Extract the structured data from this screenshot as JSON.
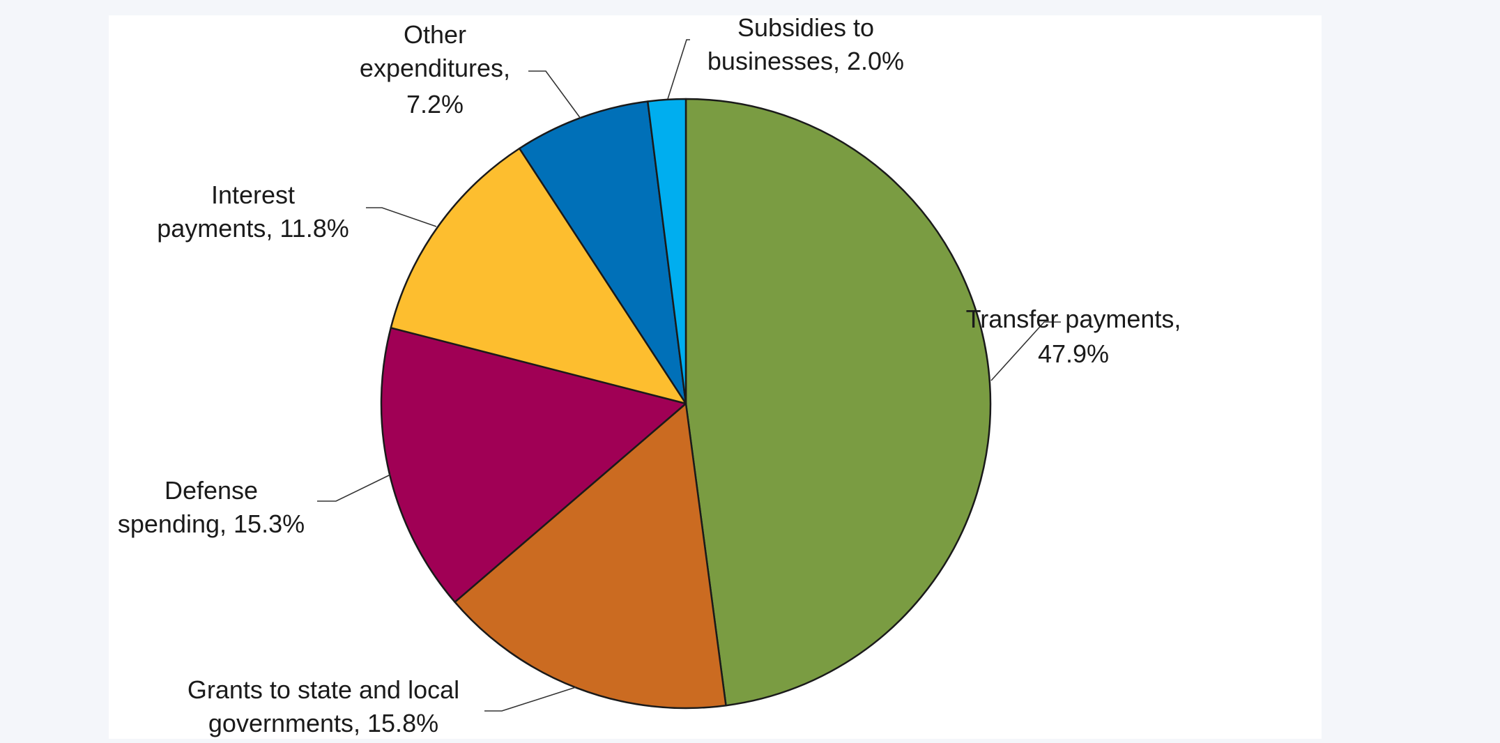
{
  "chart_data": {
    "type": "pie",
    "start_angle_deg": 0,
    "direction": "clockwise",
    "slices": [
      {
        "label": "Transfer payments",
        "value": 47.9,
        "color": "#7a9c42",
        "label_lines": [
          "Transfer payments,",
          "47.9%"
        ]
      },
      {
        "label": "Grants to state and local governments",
        "value": 15.8,
        "color": "#cb6b21",
        "label_lines": [
          "Grants to state and local",
          "governments, 15.8%"
        ]
      },
      {
        "label": "Defense spending",
        "value": 15.3,
        "color": "#a00055",
        "label_lines": [
          "Defense",
          "spending, 15.3%"
        ]
      },
      {
        "label": "Interest payments",
        "value": 11.8,
        "color": "#fdbe2f",
        "label_lines": [
          "Interest",
          "payments, 11.8%"
        ]
      },
      {
        "label": "Other expenditures",
        "value": 7.2,
        "color": "#0070b8",
        "label_lines": [
          "Other",
          "expenditures,",
          "7.2%"
        ]
      },
      {
        "label": "Subsidies to businesses",
        "value": 2.0,
        "color": "#00aeef",
        "label_lines": [
          "Subsidies to",
          "businesses, 2.0%"
        ]
      }
    ],
    "legend": "none",
    "title": ""
  }
}
